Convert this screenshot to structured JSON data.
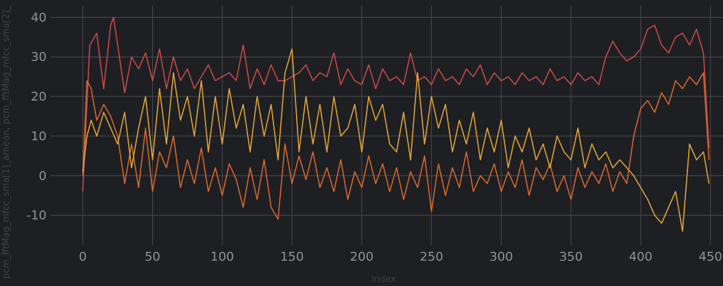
{
  "chart_data": {
    "type": "line",
    "xlabel": "index",
    "ylabel": "pcm_fftMag_mfcc_sma[1]_amean, pcm_fftMag_mfcc_sma[2]_",
    "xlim": [
      -23,
      459
    ],
    "ylim": [
      -17.5,
      43
    ],
    "x_ticks": [
      0,
      50,
      100,
      150,
      200,
      250,
      300,
      350,
      400,
      450
    ],
    "y_ticks": [
      40,
      30,
      20,
      10,
      0,
      -10
    ],
    "x_tick_labels": [
      "0",
      "50",
      "100",
      "150",
      "200",
      "250",
      "300",
      "350",
      "400",
      "450"
    ],
    "y_tick_labels": [
      "40",
      "30",
      "20",
      "10",
      "0",
      "-10"
    ],
    "grid": true,
    "series": [
      {
        "color": "#c84b48",
        "x": [
          0,
          5,
          10,
          15,
          20,
          22,
          25,
          30,
          35,
          40,
          45,
          50,
          55,
          60,
          65,
          70,
          75,
          80,
          85,
          90,
          95,
          100,
          105,
          110,
          115,
          120,
          125,
          130,
          135,
          140,
          145,
          150,
          155,
          160,
          165,
          170,
          175,
          180,
          185,
          190,
          195,
          200,
          205,
          210,
          215,
          220,
          225,
          230,
          235,
          240,
          245,
          250,
          255,
          260,
          265,
          270,
          275,
          280,
          285,
          290,
          295,
          300,
          305,
          310,
          315,
          320,
          325,
          330,
          335,
          340,
          345,
          350,
          355,
          360,
          365,
          370,
          375,
          380,
          385,
          390,
          395,
          400,
          405,
          410,
          415,
          420,
          425,
          430,
          435,
          440,
          445,
          449
        ],
        "values": [
          -4,
          33,
          36,
          22,
          38,
          40,
          33,
          21,
          30,
          27,
          31,
          24,
          32,
          22,
          30,
          24,
          27,
          22,
          25,
          28,
          24,
          25,
          26,
          24,
          33,
          22,
          27,
          23,
          28,
          24,
          24,
          25,
          26,
          28,
          24,
          26,
          25,
          31,
          23,
          27,
          24,
          23,
          28,
          22,
          27,
          24,
          25,
          23,
          31,
          24,
          25,
          23,
          27,
          24,
          25,
          23,
          27,
          25,
          28,
          23,
          26,
          24,
          25,
          23,
          26,
          24,
          25,
          23,
          27,
          24,
          25,
          23,
          26,
          24,
          25,
          23,
          30,
          34,
          31,
          29,
          30,
          32,
          37,
          38,
          33,
          31,
          35,
          36,
          33,
          37,
          31,
          7
        ]
      },
      {
        "color": "#d6682f",
        "x": [
          0,
          3,
          6,
          10,
          15,
          20,
          25,
          30,
          35,
          40,
          45,
          50,
          55,
          60,
          65,
          70,
          75,
          80,
          85,
          90,
          95,
          100,
          105,
          110,
          115,
          120,
          125,
          130,
          135,
          140,
          145,
          150,
          155,
          160,
          165,
          170,
          175,
          180,
          185,
          190,
          195,
          200,
          205,
          210,
          215,
          220,
          225,
          230,
          235,
          240,
          245,
          250,
          255,
          260,
          265,
          270,
          275,
          280,
          285,
          290,
          295,
          300,
          305,
          310,
          315,
          320,
          325,
          330,
          335,
          340,
          345,
          350,
          355,
          360,
          365,
          370,
          375,
          380,
          385,
          390,
          395,
          400,
          405,
          410,
          415,
          420,
          425,
          430,
          435,
          440,
          445,
          449
        ],
        "values": [
          0,
          24,
          22,
          14,
          18,
          15,
          10,
          -2,
          8,
          -3,
          12,
          -4,
          6,
          2,
          10,
          -3,
          4,
          -2,
          7,
          -4,
          2,
          -5,
          3,
          -1,
          -8,
          2,
          -6,
          4,
          -8,
          -11,
          8,
          -2,
          5,
          -1,
          6,
          -3,
          2,
          -4,
          4,
          -6,
          1,
          -3,
          5,
          -2,
          3,
          -4,
          2,
          -6,
          1,
          -3,
          5,
          -9,
          3,
          -5,
          2,
          -3,
          6,
          -4,
          0,
          -2,
          3,
          -4,
          1,
          -3,
          4,
          -5,
          2,
          -1,
          3,
          -4,
          0,
          -6,
          2,
          -3,
          1,
          -2,
          3,
          -4,
          1,
          -2,
          10,
          17,
          19,
          16,
          21,
          18,
          24,
          22,
          25,
          23,
          26,
          4
        ]
      },
      {
        "color": "#e0a53c",
        "x": [
          0,
          3,
          6,
          10,
          15,
          20,
          25,
          30,
          35,
          40,
          45,
          50,
          55,
          60,
          65,
          70,
          75,
          80,
          85,
          90,
          95,
          100,
          105,
          110,
          115,
          120,
          125,
          130,
          135,
          140,
          145,
          150,
          155,
          160,
          165,
          170,
          175,
          180,
          185,
          190,
          195,
          200,
          205,
          210,
          215,
          220,
          225,
          230,
          235,
          240,
          245,
          250,
          255,
          260,
          265,
          270,
          275,
          280,
          285,
          290,
          295,
          300,
          305,
          310,
          315,
          320,
          325,
          330,
          335,
          340,
          345,
          350,
          355,
          360,
          365,
          370,
          375,
          380,
          385,
          390,
          395,
          400,
          405,
          410,
          415,
          420,
          425,
          430,
          435,
          440,
          445,
          449
        ],
        "values": [
          1,
          10,
          14,
          10,
          16,
          12,
          8,
          16,
          2,
          12,
          20,
          4,
          22,
          8,
          26,
          14,
          20,
          10,
          24,
          6,
          20,
          8,
          22,
          12,
          18,
          6,
          20,
          10,
          18,
          4,
          26,
          32,
          6,
          20,
          8,
          18,
          6,
          20,
          10,
          12,
          18,
          6,
          20,
          14,
          18,
          8,
          6,
          16,
          4,
          26,
          8,
          20,
          12,
          18,
          6,
          14,
          8,
          16,
          4,
          12,
          6,
          14,
          2,
          10,
          6,
          12,
          4,
          8,
          2,
          10,
          6,
          4,
          12,
          2,
          8,
          4,
          6,
          2,
          4,
          2,
          0,
          -3,
          -6,
          -10,
          -12,
          -8,
          -4,
          -14,
          8,
          4,
          6,
          -2
        ]
      }
    ]
  }
}
